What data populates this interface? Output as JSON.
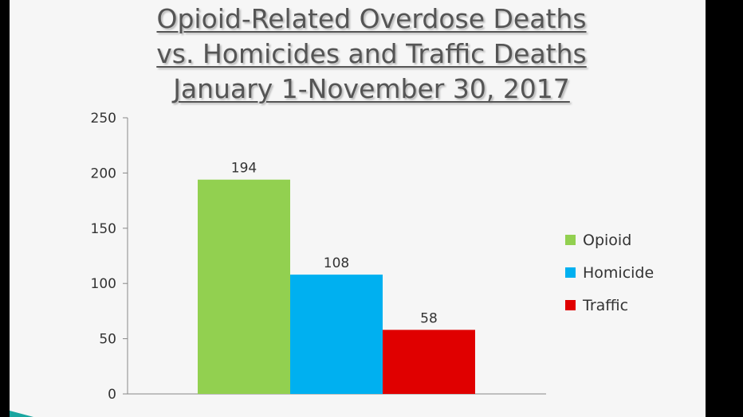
{
  "colors": {
    "opioid": "#92d050",
    "homicide": "#00b0f0",
    "traffic": "#e00000",
    "text": "#333333",
    "axis": "#888888"
  },
  "chart_data": {
    "type": "bar",
    "title_lines": [
      "Opioid-Related Overdose Deaths",
      "vs. Homicides and Traffic Deaths",
      "January 1-November 30, 2017"
    ],
    "xlabel": "",
    "ylabel": "",
    "ylim": [
      0,
      250
    ],
    "yticks": [
      0,
      50,
      100,
      150,
      200,
      250
    ],
    "grid": false,
    "legend_position": "right",
    "series": [
      {
        "name": "Opioid",
        "value": 194,
        "color": "#92d050"
      },
      {
        "name": "Homicide",
        "value": 108,
        "color": "#00b0f0"
      },
      {
        "name": "Traffic",
        "value": 58,
        "color": "#e00000"
      }
    ]
  }
}
